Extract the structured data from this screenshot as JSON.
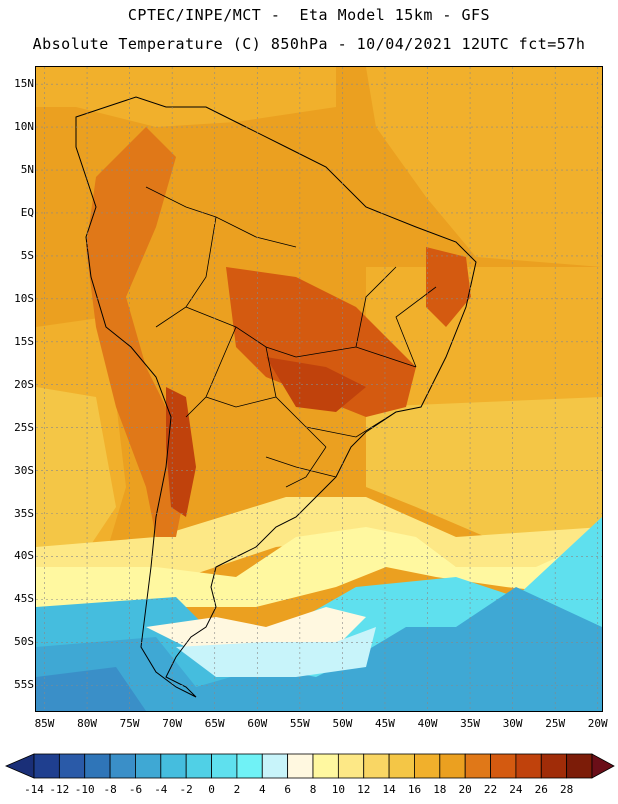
{
  "header": {
    "title_line1": "CPTEC/INPE/MCT -  Eta Model 15km - GFS",
    "title_line2": "Absolute Temperature (C) 850hPa - 10/04/2021 12UTC fct=57h"
  },
  "map": {
    "lat_labels": [
      "15N",
      "10N",
      "5N",
      "EQ",
      "5S",
      "10S",
      "15S",
      "20S",
      "25S",
      "30S",
      "35S",
      "40S",
      "45S",
      "50S",
      "55S"
    ],
    "lat_values": [
      15,
      10,
      5,
      0,
      -5,
      -10,
      -15,
      -20,
      -25,
      -30,
      -35,
      -40,
      -45,
      -50,
      -55
    ],
    "lon_labels": [
      "85W",
      "80W",
      "75W",
      "70W",
      "65W",
      "60W",
      "55W",
      "50W",
      "45W",
      "40W",
      "35W",
      "30W",
      "25W",
      "20W"
    ],
    "lon_values": [
      -85,
      -80,
      -75,
      -70,
      -65,
      -60,
      -55,
      -50,
      -45,
      -40,
      -35,
      -30,
      -25,
      -20
    ],
    "extent": {
      "lon": [
        -86,
        -19.5
      ],
      "lat": [
        17,
        -58
      ]
    },
    "gridlines": true
  },
  "colorbar": {
    "labels": [
      "-14",
      "-12",
      "-10",
      "-8",
      "-6",
      "-4",
      "-2",
      "0",
      "2",
      "4",
      "6",
      "8",
      "10",
      "12",
      "14",
      "16",
      "18",
      "20",
      "22",
      "24",
      "26",
      "28"
    ],
    "colors": [
      "#1f3f8f",
      "#2a5aa8",
      "#2f75b8",
      "#3a8fc8",
      "#3fa8d4",
      "#45bdde",
      "#50d0e6",
      "#5fe0ee",
      "#70f2f6",
      "#c8f4fa",
      "#fff8e0",
      "#fff8a0",
      "#fde886",
      "#f9d664",
      "#f4c646",
      "#f1b02c",
      "#eba020",
      "#e07818",
      "#d45a10",
      "#c0420c",
      "#a02c08",
      "#7c1c08"
    ],
    "under_color": "#1a2f78",
    "over_color": "#6a0e18"
  }
}
